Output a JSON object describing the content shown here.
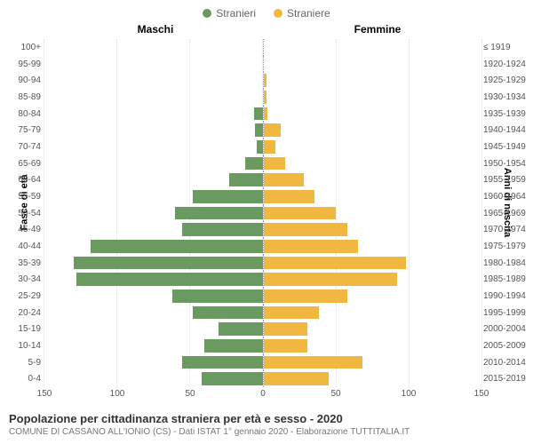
{
  "legend": {
    "male": {
      "label": "Stranieri",
      "color": "#6a9a5f"
    },
    "female": {
      "label": "Straniere",
      "color": "#f0b840"
    }
  },
  "headers": {
    "left": "Maschi",
    "right": "Femmine"
  },
  "axis_labels": {
    "left": "Fasce di età",
    "right": "Anni di nascita"
  },
  "chart": {
    "type": "population-pyramid",
    "max": 150,
    "xticks": [
      0,
      50,
      100,
      150
    ],
    "grid_color": "#dddddd",
    "male_color": "#6a9a5f",
    "female_color": "#f0b840",
    "rows": [
      {
        "age": "100+",
        "year": "≤ 1919",
        "m": 0,
        "f": 0
      },
      {
        "age": "95-99",
        "year": "1920-1924",
        "m": 0,
        "f": 0
      },
      {
        "age": "90-94",
        "year": "1925-1929",
        "m": 0,
        "f": 2
      },
      {
        "age": "85-89",
        "year": "1930-1934",
        "m": 0,
        "f": 2
      },
      {
        "age": "80-84",
        "year": "1935-1939",
        "m": 6,
        "f": 3
      },
      {
        "age": "75-79",
        "year": "1940-1944",
        "m": 5,
        "f": 12
      },
      {
        "age": "70-74",
        "year": "1945-1949",
        "m": 4,
        "f": 8
      },
      {
        "age": "65-69",
        "year": "1950-1954",
        "m": 12,
        "f": 15
      },
      {
        "age": "60-64",
        "year": "1955-1959",
        "m": 23,
        "f": 28
      },
      {
        "age": "55-59",
        "year": "1960-1964",
        "m": 48,
        "f": 35
      },
      {
        "age": "50-54",
        "year": "1965-1969",
        "m": 60,
        "f": 50
      },
      {
        "age": "45-49",
        "year": "1970-1974",
        "m": 55,
        "f": 58
      },
      {
        "age": "40-44",
        "year": "1975-1979",
        "m": 118,
        "f": 65
      },
      {
        "age": "35-39",
        "year": "1980-1984",
        "m": 130,
        "f": 98
      },
      {
        "age": "30-34",
        "year": "1985-1989",
        "m": 128,
        "f": 92
      },
      {
        "age": "25-29",
        "year": "1990-1994",
        "m": 62,
        "f": 58
      },
      {
        "age": "20-24",
        "year": "1995-1999",
        "m": 48,
        "f": 38
      },
      {
        "age": "15-19",
        "year": "2000-2004",
        "m": 30,
        "f": 30
      },
      {
        "age": "10-14",
        "year": "2005-2009",
        "m": 40,
        "f": 30
      },
      {
        "age": "5-9",
        "year": "2010-2014",
        "m": 55,
        "f": 68
      },
      {
        "age": "0-4",
        "year": "2015-2019",
        "m": 42,
        "f": 45
      }
    ]
  },
  "footer": {
    "title": "Popolazione per cittadinanza straniera per età e sesso - 2020",
    "subtitle": "COMUNE DI CASSANO ALL'IONIO (CS) - Dati ISTAT 1° gennaio 2020 - Elaborazione TUTTITALIA.IT"
  }
}
